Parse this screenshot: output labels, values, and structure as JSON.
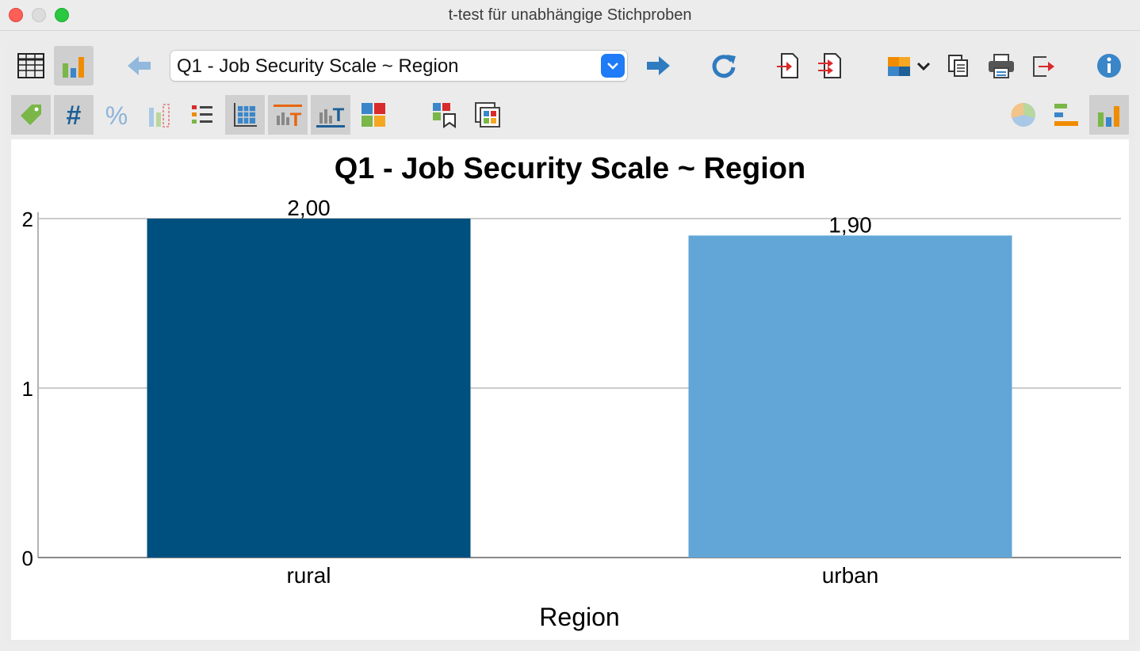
{
  "window": {
    "title": "t-test für unabhängige Stichproben"
  },
  "toolbar": {
    "selector_value": "Q1 - Job Security Scale ~ Region"
  },
  "colors": {
    "rural": "#00507f",
    "urban": "#62a5d7",
    "accent": "#1f7bf6"
  },
  "chart_data": {
    "type": "bar",
    "title": "Q1 - Job Security Scale ~ Region",
    "categories": [
      "rural",
      "urban"
    ],
    "values": [
      2.0,
      1.9
    ],
    "data_labels": [
      "2,00",
      "1,90"
    ],
    "xlabel": "Region",
    "ylabel": "",
    "ylim": [
      0,
      2
    ],
    "yticks": [
      "0",
      "1",
      "2"
    ],
    "grid": true,
    "legend": "none"
  }
}
